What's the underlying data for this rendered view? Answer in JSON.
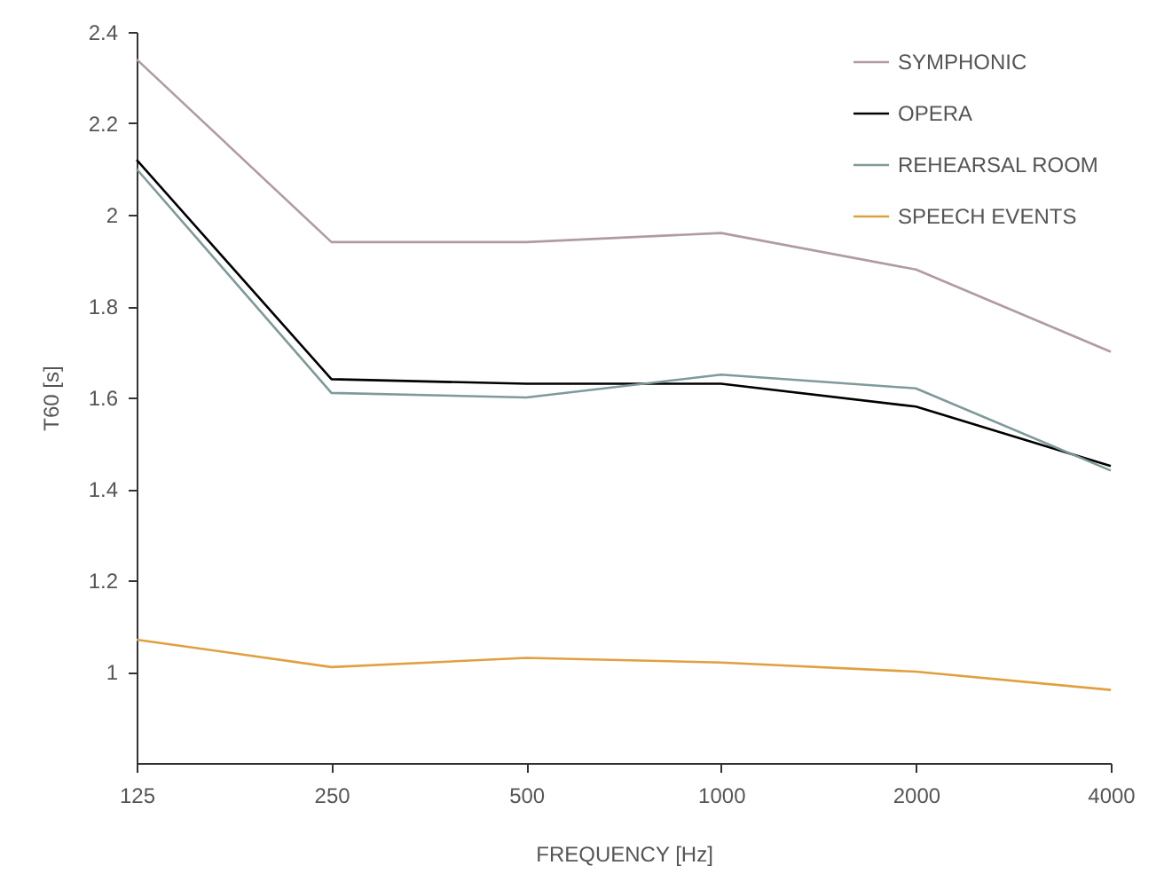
{
  "chart_data": {
    "type": "line",
    "xlabel": "FREQUENCY [Hz]",
    "ylabel": "T60 [s]",
    "categories": [
      "125",
      "250",
      "500",
      "1000",
      "2000",
      "4000"
    ],
    "series": [
      {
        "name": "SYMPHONIC",
        "color": "#b09ba5",
        "values": [
          2.34,
          1.94,
          1.94,
          1.96,
          1.88,
          1.7
        ]
      },
      {
        "name": "OPERA",
        "color": "#000000",
        "values": [
          2.12,
          1.64,
          1.63,
          1.63,
          1.58,
          1.45
        ]
      },
      {
        "name": "REHEARSAL ROOM",
        "color": "#7f9a9a",
        "values": [
          2.1,
          1.61,
          1.6,
          1.65,
          1.62,
          1.44
        ]
      },
      {
        "name": "SPEECH EVENTS",
        "color": "#e0a040",
        "values": [
          1.07,
          1.01,
          1.03,
          1.02,
          1.0,
          0.96
        ]
      }
    ],
    "ylim": [
      0.8,
      2.4
    ],
    "yticks": [
      1,
      1.2,
      1.4,
      1.6,
      1.8,
      2,
      2.2,
      2.4
    ],
    "grid": false,
    "legend": "top right",
    "marker": "none",
    "line_style": "solid"
  }
}
